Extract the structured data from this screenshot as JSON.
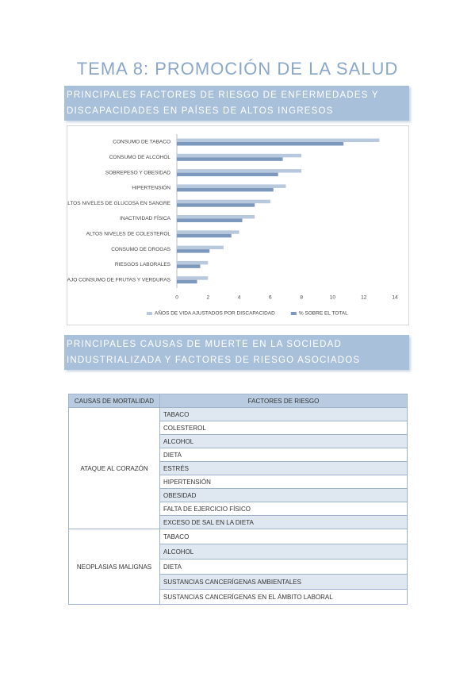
{
  "title": "TEMA 8: PROMOCIÓN DE LA SALUD",
  "section1": {
    "heading": "PRINCIPALES FACTORES DE RIESGO DE ENFERMEDADES Y DISCAPACIDADES EN PAÍSES DE ALTOS INGRESOS"
  },
  "chart_data": {
    "type": "hbar",
    "categories": [
      "CONSUMO DE TABACO",
      "CONSUMO DE ALCOHOL",
      "SOBREPESO Y OBESIDAD",
      "HIPERTENSIÓN",
      "ALTOS NIVELES DE GLUCOSA EN SANGRE",
      "INACTIVIDAD FÍSICA",
      "ALTOS NIVELES DE COLESTEROL",
      "CONSUMO DE DROGAS",
      "RIESGOS LABORALES",
      "BAJO CONSUMO DE FRUTAS Y VERDURAS"
    ],
    "series": [
      {
        "name": "AÑOS DE VIDA AJUSTADOS POR DISCAPACIDAD",
        "color": "#b9c9dd",
        "values": [
          13,
          8,
          8,
          7,
          6,
          5,
          4,
          3,
          2,
          2
        ]
      },
      {
        "name": "% SOBRE EL TOTAL",
        "color": "#7d98bd",
        "values": [
          10.7,
          6.8,
          6.5,
          6.2,
          5,
          4.2,
          3.5,
          2.1,
          1.5,
          1.3
        ]
      }
    ],
    "xlim": [
      0,
      14
    ],
    "xticks": [
      0,
      2,
      4,
      6,
      8,
      10,
      12,
      14
    ],
    "grid": false,
    "legend": "bottom"
  },
  "section2": {
    "heading": "PRINCIPALES CAUSAS DE MUERTE EN LA SOCIEDAD INDUSTRIALIZADA Y FACTORES DE RIESGO ASOCIADOS"
  },
  "table": {
    "header": [
      "CAUSAS DE MORTALIDAD",
      "FACTORES DE RIESGO"
    ],
    "groups": [
      {
        "cause": "ATAQUE AL CORAZÓN",
        "factors": [
          "TABACO",
          "COLESTEROL",
          "ALCOHOL",
          "DIETA",
          "ESTRÉS",
          "HIPERTENSIÓN",
          "OBESIDAD",
          "FALTA DE EJERCICIO FÍSICO",
          "EXCESO DE SAL EN LA DIETA"
        ]
      },
      {
        "cause": "NEOPLASIAS MALIGNAS",
        "factors": [
          "TABACO",
          "ALCOHOL",
          "DIETA",
          "SUSTANCIAS CANCERÍGENAS AMBIENTALES",
          "SUSTANCIAS CANCERÍGENAS EN EL ÁMBITO LABORAL"
        ]
      }
    ]
  }
}
